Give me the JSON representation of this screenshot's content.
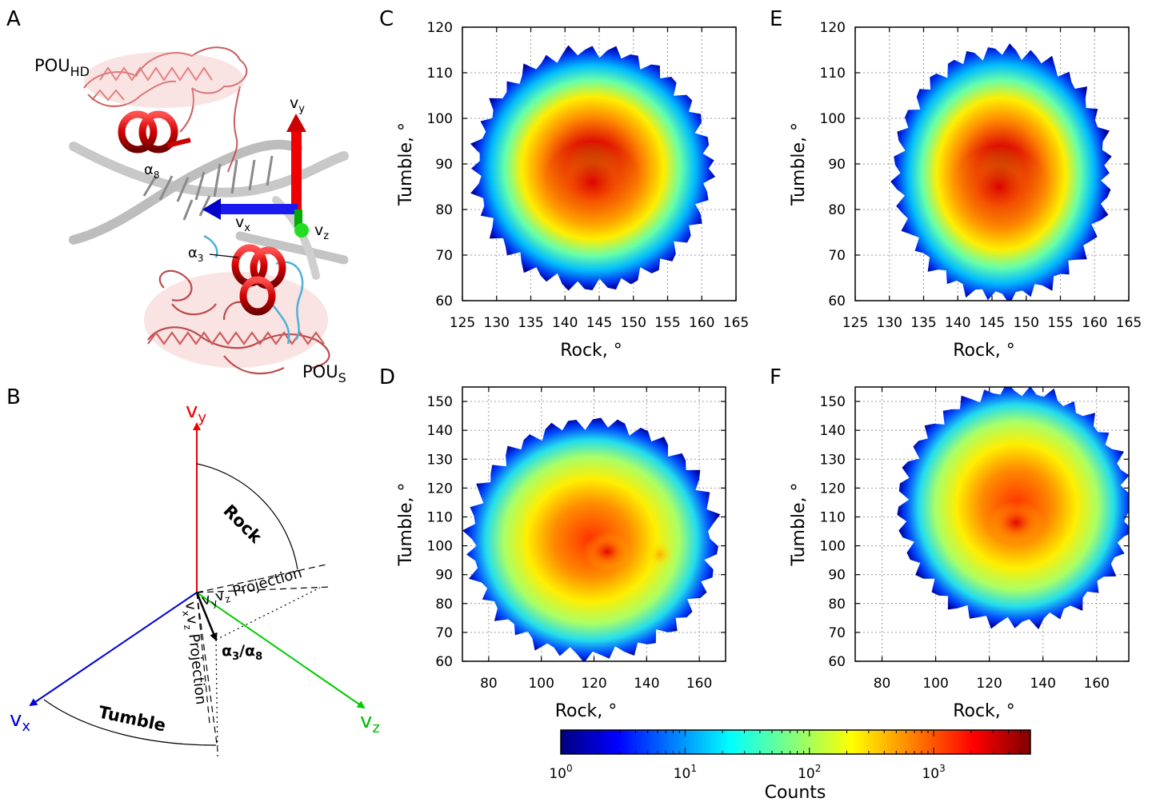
{
  "panel_letters": [
    "A",
    "B",
    "C",
    "D",
    "E",
    "F"
  ],
  "panel_a": {
    "pou_hd": "POU",
    "pou_hd_sub": "HD",
    "pou_s": "POU",
    "pou_s_sub": "S",
    "alpha8": "α",
    "alpha8_sub": "8",
    "alpha3": "α",
    "alpha3_sub": "3",
    "vx": "v",
    "vx_sub": "x",
    "vy": "v",
    "vy_sub": "y",
    "vz": "v",
    "vz_sub": "z"
  },
  "panel_b": {
    "vx": "v",
    "vx_sub": "x",
    "vy": "v",
    "vy_sub": "y",
    "vz": "v",
    "vz_sub": "z",
    "rock": "Rock",
    "tumble": "Tumble",
    "vyvz_projection": "Projection",
    "vxvz_projection": "Projection",
    "alpha_label": "α",
    "alpha_label_sub1": "3",
    "alpha_label_mid": "/α",
    "alpha_label_sub2": "8",
    "colors": {
      "vx": "#0000dd",
      "vy": "#ee0000",
      "vz": "#00cc00"
    }
  },
  "chart_data": [
    {
      "id": "C",
      "type": "heatmap",
      "xlabel": "Rock, °",
      "ylabel": "Tumble, °",
      "xlim": [
        125,
        165
      ],
      "ylim": [
        60,
        120
      ],
      "xticks": [
        125,
        130,
        135,
        140,
        145,
        150,
        155,
        160,
        165
      ],
      "yticks": [
        60,
        70,
        80,
        90,
        100,
        110,
        120
      ],
      "grid": true,
      "peak": {
        "x": 144,
        "y": 86,
        "counts": 5000
      },
      "support": {
        "x": [
          127,
          161
        ],
        "y": [
          63,
          115
        ]
      }
    },
    {
      "id": "D",
      "type": "heatmap",
      "xlabel": "Rock, °",
      "ylabel": "Tumble, °",
      "xlim": [
        70,
        170
      ],
      "ylim": [
        60,
        155
      ],
      "xticks": [
        80,
        100,
        120,
        140,
        160
      ],
      "yticks": [
        60,
        70,
        80,
        90,
        100,
        110,
        120,
        130,
        140,
        150
      ],
      "grid": true,
      "peak": {
        "x": 125,
        "y": 99,
        "counts": 1500
      },
      "support": {
        "x": [
          73,
          166
        ],
        "y": [
          62,
          143
        ]
      }
    },
    {
      "id": "E",
      "type": "heatmap",
      "xlabel": "Rock, °",
      "ylabel": "Tumble, °",
      "xlim": [
        125,
        165
      ],
      "ylim": [
        60,
        120
      ],
      "xticks": [
        125,
        130,
        135,
        140,
        145,
        150,
        155,
        160,
        165
      ],
      "yticks": [
        60,
        70,
        80,
        90,
        100,
        110,
        120
      ],
      "grid": true,
      "peak": {
        "x": 146,
        "y": 85,
        "counts": 5000
      },
      "support": {
        "x": [
          131,
          162
        ],
        "y": [
          61,
          115
        ]
      }
    },
    {
      "id": "F",
      "type": "heatmap",
      "xlabel": "Rock, °",
      "ylabel": "Tumble, °",
      "xlim": [
        70,
        172
      ],
      "ylim": [
        60,
        155
      ],
      "xticks": [
        80,
        100,
        120,
        140,
        160
      ],
      "yticks": [
        60,
        70,
        80,
        90,
        100,
        110,
        120,
        130,
        140,
        150
      ],
      "grid": true,
      "peak": {
        "x": 130,
        "y": 108,
        "counts": 3000
      },
      "support": {
        "x": [
          87,
          172
        ],
        "y": [
          73,
          154
        ]
      }
    }
  ],
  "colorbar": {
    "label": "Counts",
    "scale": "log",
    "range": [
      1,
      6000
    ],
    "tick_base": "10",
    "tick_exponents": [
      "0",
      "1",
      "2",
      "3"
    ],
    "colormap": "jet"
  }
}
